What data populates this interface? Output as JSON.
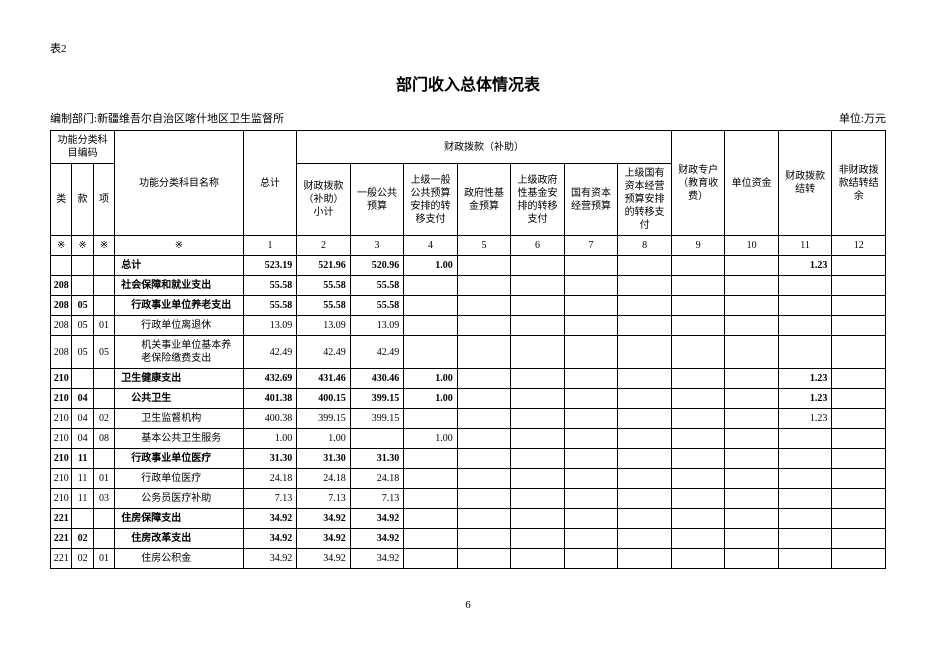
{
  "table_label": "表2",
  "title": "部门收入总体情况表",
  "dept_label": "编制部门:",
  "dept_name": "新疆维吾尔自治区喀什地区卫生监督所",
  "unit_label": "单位:万元",
  "page_number": "6",
  "headers": {
    "func_code": "功能分类科目编码",
    "lei": "类",
    "kuan": "款",
    "xiang": "项",
    "func_name": "功能分类科目名称",
    "total": "总计",
    "fiscal_group": "财政拨款（补助）",
    "c1": "财政拨款（补助）小计",
    "c2": "一般公共预算",
    "c3": "上级一般公共预算安排的转移支付",
    "c4": "政府性基金预算",
    "c5": "上级政府性基金安排的转移支付",
    "c6": "国有资本经营预算",
    "c7": "上级国有资本经营预算安排的转移支付",
    "c8": "财政专户（教育收费）",
    "c9": "单位资金",
    "c10": "财政拨款结转",
    "c11": "非财政拨款结转结余"
  },
  "marker_row": {
    "star": "※",
    "nums": [
      "1",
      "2",
      "3",
      "4",
      "5",
      "6",
      "7",
      "8",
      "9",
      "10",
      "11",
      "12"
    ]
  },
  "rows": [
    {
      "codes": [
        "",
        "",
        ""
      ],
      "name": "总计",
      "vals": [
        "523.19",
        "521.96",
        "520.96",
        "1.00",
        "",
        "",
        "",
        "",
        "",
        "",
        "1.23",
        ""
      ],
      "bold": true,
      "indent": 0
    },
    {
      "codes": [
        "208",
        "",
        ""
      ],
      "name": "社会保障和就业支出",
      "vals": [
        "55.58",
        "55.58",
        "55.58",
        "",
        "",
        "",
        "",
        "",
        "",
        "",
        "",
        ""
      ],
      "bold": true,
      "indent": 0
    },
    {
      "codes": [
        "208",
        "05",
        ""
      ],
      "name": "行政事业单位养老支出",
      "vals": [
        "55.58",
        "55.58",
        "55.58",
        "",
        "",
        "",
        "",
        "",
        "",
        "",
        "",
        ""
      ],
      "bold": true,
      "indent": 1
    },
    {
      "codes": [
        "208",
        "05",
        "01"
      ],
      "name": "行政单位离退休",
      "vals": [
        "13.09",
        "13.09",
        "13.09",
        "",
        "",
        "",
        "",
        "",
        "",
        "",
        "",
        ""
      ],
      "bold": false,
      "indent": 2
    },
    {
      "codes": [
        "208",
        "05",
        "05"
      ],
      "name": "机关事业单位基本养老保险缴费支出",
      "vals": [
        "42.49",
        "42.49",
        "42.49",
        "",
        "",
        "",
        "",
        "",
        "",
        "",
        "",
        ""
      ],
      "bold": false,
      "indent": 2
    },
    {
      "codes": [
        "210",
        "",
        ""
      ],
      "name": "卫生健康支出",
      "vals": [
        "432.69",
        "431.46",
        "430.46",
        "1.00",
        "",
        "",
        "",
        "",
        "",
        "",
        "1.23",
        ""
      ],
      "bold": true,
      "indent": 0
    },
    {
      "codes": [
        "210",
        "04",
        ""
      ],
      "name": "公共卫生",
      "vals": [
        "401.38",
        "400.15",
        "399.15",
        "1.00",
        "",
        "",
        "",
        "",
        "",
        "",
        "1.23",
        ""
      ],
      "bold": true,
      "indent": 1
    },
    {
      "codes": [
        "210",
        "04",
        "02"
      ],
      "name": "卫生监督机构",
      "vals": [
        "400.38",
        "399.15",
        "399.15",
        "",
        "",
        "",
        "",
        "",
        "",
        "",
        "1.23",
        ""
      ],
      "bold": false,
      "indent": 2
    },
    {
      "codes": [
        "210",
        "04",
        "08"
      ],
      "name": "基本公共卫生服务",
      "vals": [
        "1.00",
        "1.00",
        "",
        "1.00",
        "",
        "",
        "",
        "",
        "",
        "",
        "",
        ""
      ],
      "bold": false,
      "indent": 2
    },
    {
      "codes": [
        "210",
        "11",
        ""
      ],
      "name": "行政事业单位医疗",
      "vals": [
        "31.30",
        "31.30",
        "31.30",
        "",
        "",
        "",
        "",
        "",
        "",
        "",
        "",
        ""
      ],
      "bold": true,
      "indent": 1
    },
    {
      "codes": [
        "210",
        "11",
        "01"
      ],
      "name": "行政单位医疗",
      "vals": [
        "24.18",
        "24.18",
        "24.18",
        "",
        "",
        "",
        "",
        "",
        "",
        "",
        "",
        ""
      ],
      "bold": false,
      "indent": 2
    },
    {
      "codes": [
        "210",
        "11",
        "03"
      ],
      "name": "公务员医疗补助",
      "vals": [
        "7.13",
        "7.13",
        "7.13",
        "",
        "",
        "",
        "",
        "",
        "",
        "",
        "",
        ""
      ],
      "bold": false,
      "indent": 2
    },
    {
      "codes": [
        "221",
        "",
        ""
      ],
      "name": "住房保障支出",
      "vals": [
        "34.92",
        "34.92",
        "34.92",
        "",
        "",
        "",
        "",
        "",
        "",
        "",
        "",
        ""
      ],
      "bold": true,
      "indent": 0
    },
    {
      "codes": [
        "221",
        "02",
        ""
      ],
      "name": "住房改革支出",
      "vals": [
        "34.92",
        "34.92",
        "34.92",
        "",
        "",
        "",
        "",
        "",
        "",
        "",
        "",
        ""
      ],
      "bold": true,
      "indent": 1
    },
    {
      "codes": [
        "221",
        "02",
        "01"
      ],
      "name": "住房公积金",
      "vals": [
        "34.92",
        "34.92",
        "34.92",
        "",
        "",
        "",
        "",
        "",
        "",
        "",
        "",
        ""
      ],
      "bold": false,
      "indent": 2
    }
  ]
}
